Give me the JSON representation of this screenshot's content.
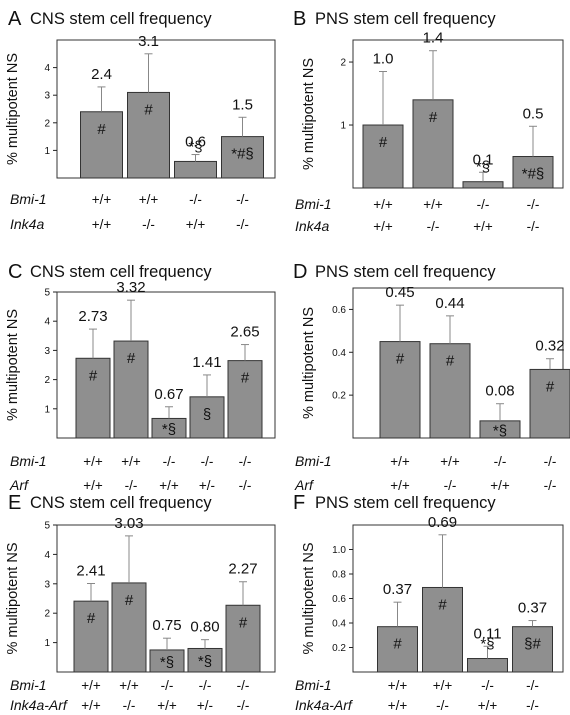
{
  "bar_color": "#8f8f8f",
  "chart_data": [
    {
      "type": "bar",
      "letter": "A",
      "title": "CNS stem cell frequency",
      "ylabel": "% multipotent NS",
      "ylim": [
        0,
        5.0
      ],
      "yticks": [
        "1",
        "2",
        "3",
        "4"
      ],
      "yticks_num": [
        1,
        2,
        3,
        4
      ],
      "genotype_rows": [
        {
          "label": "Bmi-1",
          "values": [
            "+/+",
            "+/+",
            "-/-",
            "-/-"
          ]
        },
        {
          "label": "Ink4a",
          "values": [
            "+/+",
            "-/-",
            "+/+",
            "-/-"
          ]
        }
      ],
      "values": [
        2.4,
        3.1,
        0.6,
        1.5
      ],
      "errors": [
        0.9,
        1.4,
        0.25,
        0.7
      ],
      "value_labels": [
        "2.4",
        "3.1",
        "0.6",
        "1.5"
      ],
      "marks": [
        "#",
        "#",
        "*§",
        "*#§"
      ],
      "marks_pos": [
        "in",
        "in",
        "above",
        "in"
      ]
    },
    {
      "type": "bar",
      "letter": "B",
      "title": "PNS stem cell frequency",
      "ylabel": "% multipotent NS",
      "ylim": [
        0,
        2.35
      ],
      "yticks": [
        "1",
        "2"
      ],
      "yticks_num": [
        1,
        2
      ],
      "genotype_rows": [
        {
          "label": "Bmi-1",
          "values": [
            "+/+",
            "+/+",
            "-/-",
            "-/-"
          ]
        },
        {
          "label": "Ink4a",
          "values": [
            "+/+",
            "-/-",
            "+/+",
            "-/-"
          ]
        }
      ],
      "values": [
        1.0,
        1.4,
        0.1,
        0.5
      ],
      "errors": [
        0.85,
        0.78,
        0.15,
        0.48
      ],
      "value_labels": [
        "1.0",
        "1.4",
        "0.1",
        "0.5"
      ],
      "marks": [
        "#",
        "#",
        "*§",
        "*#§"
      ],
      "marks_pos": [
        "in",
        "in",
        "above",
        "in"
      ]
    },
    {
      "type": "bar",
      "letter": "C",
      "title": "CNS stem cell frequency",
      "ylabel": "% multipotent NS",
      "ylim": [
        0,
        5.0
      ],
      "yticks": [
        "1",
        "2",
        "3",
        "4",
        "5"
      ],
      "yticks_num": [
        1,
        2,
        3,
        4,
        5
      ],
      "genotype_rows": [
        {
          "label": "Bmi-1",
          "values": [
            "+/+",
            "+/+",
            "-/-",
            "-/-",
            "-/-"
          ]
        },
        {
          "label": "Arf",
          "values": [
            "+/+",
            "-/-",
            "+/+",
            "+/-",
            "-/-"
          ]
        }
      ],
      "values": [
        2.73,
        3.32,
        0.67,
        1.41,
        2.65
      ],
      "errors": [
        1.0,
        1.4,
        0.4,
        0.75,
        0.55
      ],
      "value_labels": [
        "2.73",
        "3.32",
        "0.67",
        "1.41",
        "2.65"
      ],
      "marks": [
        "#",
        "#",
        "*§",
        "§",
        "#"
      ],
      "marks_pos": [
        "in",
        "in",
        "in",
        "in",
        "in"
      ]
    },
    {
      "type": "bar",
      "letter": "D",
      "title": "PNS stem cell frequency",
      "ylabel": "% multipotent NS",
      "ylim": [
        0,
        0.7
      ],
      "yticks": [
        "0.2",
        "0.4",
        "0.6"
      ],
      "yticks_num": [
        0.2,
        0.4,
        0.6
      ],
      "genotype_rows": [
        {
          "label": "Bmi-1",
          "values": [
            "+/+",
            "+/+",
            "-/-",
            "-/-"
          ]
        },
        {
          "label": "Arf",
          "values": [
            "+/+",
            "-/-",
            "+/+",
            "-/-"
          ]
        }
      ],
      "values": [
        0.45,
        0.44,
        0.08,
        0.32
      ],
      "errors": [
        0.17,
        0.13,
        0.08,
        0.05
      ],
      "value_labels": [
        "0.45",
        "0.44",
        "0.08",
        "0.32"
      ],
      "marks": [
        "#",
        "#",
        "*§",
        "#"
      ],
      "marks_pos": [
        "in",
        "in",
        "in",
        "in"
      ]
    },
    {
      "type": "bar",
      "letter": "E",
      "title": "CNS stem cell frequency",
      "ylabel": "% multipotent NS",
      "ylim": [
        0,
        5.0
      ],
      "yticks": [
        "1",
        "2",
        "3",
        "4",
        "5"
      ],
      "yticks_num": [
        1,
        2,
        3,
        4,
        5
      ],
      "genotype_rows": [
        {
          "label": "Bmi-1",
          "values": [
            "+/+",
            "+/+",
            "-/-",
            "-/-",
            "-/-"
          ]
        },
        {
          "label": "Ink4a-Arf",
          "values": [
            "+/+",
            "-/-",
            "+/+",
            "+/-",
            "-/-"
          ]
        }
      ],
      "values": [
        2.41,
        3.03,
        0.75,
        0.8,
        2.27
      ],
      "errors": [
        0.6,
        1.6,
        0.4,
        0.3,
        0.8
      ],
      "value_labels": [
        "2.41",
        "3.03",
        "0.75",
        "0.80",
        "2.27"
      ],
      "marks": [
        "#",
        "#",
        "*§",
        "*§",
        "#"
      ],
      "marks_pos": [
        "in",
        "in",
        "in",
        "in",
        "in"
      ]
    },
    {
      "type": "bar",
      "letter": "F",
      "title": "PNS stem cell frequency",
      "ylabel": "% multipotent NS",
      "ylim": [
        0,
        1.2
      ],
      "yticks": [
        "0.2",
        "0.4",
        "0.6",
        "0.8",
        "1.0"
      ],
      "yticks_num": [
        0.2,
        0.4,
        0.6,
        0.8,
        1.0
      ],
      "genotype_rows": [
        {
          "label": "Bmi-1",
          "values": [
            "+/+",
            "+/+",
            "-/-",
            "-/-"
          ]
        },
        {
          "label": "Ink4a-Arf",
          "values": [
            "+/+",
            "-/-",
            "+/+",
            "-/-"
          ]
        }
      ],
      "values": [
        0.37,
        0.69,
        0.11,
        0.37
      ],
      "errors": [
        0.2,
        0.43,
        0.1,
        0.05
      ],
      "value_labels": [
        "0.37",
        "0.69",
        "0.11",
        "0.37"
      ],
      "marks": [
        "#",
        "#",
        "*§",
        "§#"
      ],
      "marks_pos": [
        "in",
        "in",
        "above",
        "in"
      ]
    }
  ]
}
